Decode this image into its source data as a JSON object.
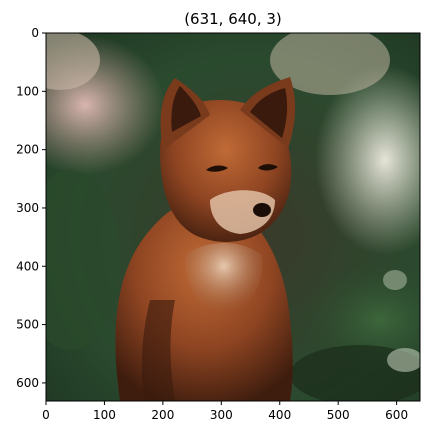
{
  "figure": {
    "title": "(631, 640, 3)",
    "image_description": "fox",
    "image_shape": [
      631,
      640,
      3
    ],
    "x_ticks": [
      "0",
      "100",
      "200",
      "300",
      "400",
      "500",
      "600"
    ],
    "y_ticks": [
      "0",
      "100",
      "200",
      "300",
      "400",
      "500",
      "600"
    ],
    "x_range": [
      0,
      640
    ],
    "y_range": [
      631,
      0
    ],
    "colors": {
      "fur": "#a8542a",
      "fur_dark": "#5b2a14",
      "chest": "#d8b49a",
      "bg_pink": "#d9b2ad",
      "bg_green": "#2c4b2f",
      "bg_light": "#e9e6d7"
    }
  }
}
